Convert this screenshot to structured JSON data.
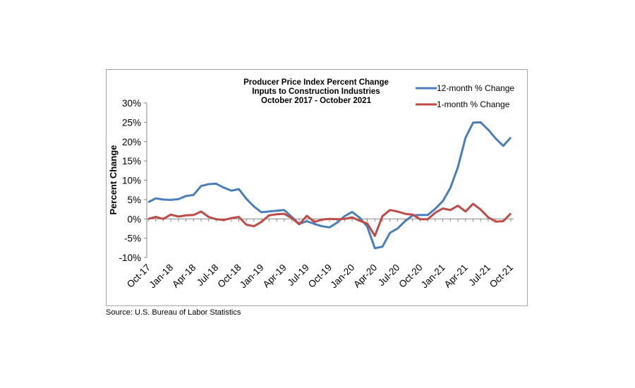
{
  "chart_data": {
    "type": "line",
    "title": [
      "Producer Price Index Percent Change",
      "Inputs to Construction Industries",
      "October 2017 - October 2021"
    ],
    "ylabel": "Percent Change",
    "xlabel": "",
    "ylim": [
      -10,
      30
    ],
    "yticks": [
      "30%",
      "25%",
      "20%",
      "15%",
      "10%",
      "5%",
      "0%",
      "-5%",
      "-10%"
    ],
    "ytick_values": [
      30,
      25,
      20,
      15,
      10,
      5,
      0,
      -5,
      -10
    ],
    "xtick_labels": [
      "Oct-17",
      "Jan-18",
      "Apr-18",
      "Jul-18",
      "Oct-18",
      "Jan-19",
      "Apr-19",
      "Jul-19",
      "Oct-19",
      "Jan-20",
      "Apr-20",
      "Jul-20",
      "Oct-20",
      "Jan-21",
      "Apr-21",
      "Jul-21",
      "Oct-21"
    ],
    "x_start": "Oct-17",
    "x_end": "Oct-21",
    "grid": false,
    "legend_placement": "top-right",
    "series": [
      {
        "name": "12-month % Change",
        "color": "#4a7ebb",
        "values": [
          4.3,
          5.3,
          5.0,
          4.9,
          5.1,
          5.9,
          6.2,
          8.5,
          9.0,
          9.1,
          8.1,
          7.3,
          7.7,
          5.2,
          3.2,
          1.7,
          1.9,
          2.1,
          2.3,
          0.5,
          -1.3,
          -0.6,
          -1.3,
          -1.9,
          -2.2,
          -1.0,
          0.7,
          1.8,
          0.3,
          -2.0,
          -7.6,
          -7.2,
          -3.6,
          -2.5,
          -0.6,
          0.9,
          1.0,
          1.0,
          2.6,
          4.6,
          8.0,
          13.4,
          21.0,
          24.9,
          25.0,
          23.1,
          20.8,
          18.9,
          21.1
        ]
      },
      {
        "name": "1-month % Change",
        "color": "#be4b48",
        "values": [
          0.0,
          0.5,
          0.0,
          1.1,
          0.6,
          0.9,
          1.0,
          1.9,
          0.5,
          -0.1,
          -0.3,
          0.2,
          0.5,
          -1.5,
          -1.9,
          -0.8,
          0.9,
          1.2,
          1.3,
          0.2,
          -1.4,
          0.8,
          -0.8,
          -0.2,
          0.0,
          -0.1,
          0.0,
          0.4,
          -0.5,
          -1.2,
          -4.4,
          0.7,
          2.3,
          1.9,
          1.3,
          1.1,
          -0.1,
          -0.1,
          1.6,
          2.7,
          2.3,
          3.4,
          1.9,
          3.9,
          2.4,
          0.4,
          -0.7,
          -0.6,
          1.4
        ]
      }
    ]
  },
  "source": "Source: U.S. Bureau of Labor Statistics"
}
